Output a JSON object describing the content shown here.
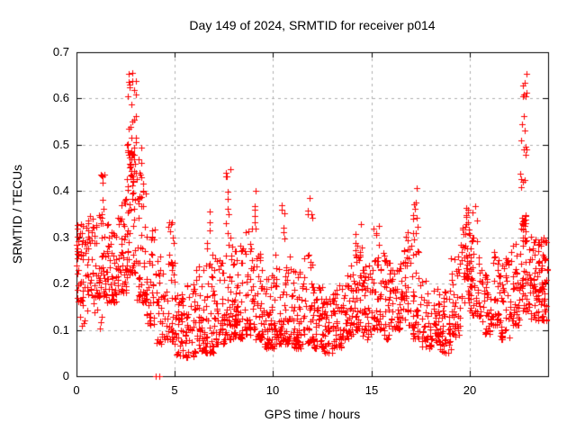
{
  "chart_data": {
    "type": "scatter",
    "title": "Day 149 of 2024, SRMTID for receiver p014",
    "xlabel": "GPS time / hours",
    "ylabel": "SRMTID / TECUs",
    "xlim": [
      0,
      24
    ],
    "ylim": [
      0,
      0.7
    ],
    "xticks": [
      0,
      5,
      10,
      15,
      20
    ],
    "ytick_labels": [
      "0",
      "0.1",
      "0.2",
      "0.3",
      "0.4",
      "0.5",
      "0.6",
      "0.7"
    ],
    "yticks": [
      0,
      0.1,
      0.2,
      0.3,
      0.4,
      0.5,
      0.6,
      0.7
    ],
    "grid": {
      "on": true,
      "color": "#b0b0b0",
      "dash": [
        3,
        4
      ]
    },
    "legend": {
      "visible": false
    },
    "marker": {
      "shape": "plus",
      "color": "#ff0000",
      "size": 7
    },
    "axis_color": "#000000",
    "background": "#ffffff",
    "series_name": "SRMTID",
    "notable_points": {
      "max": {
        "x": 2.8,
        "y": 0.655
      },
      "late_spike": {
        "x": 22.75,
        "y": 0.65
      },
      "zeros": [
        [
          4.03,
          0.0
        ],
        [
          4.2,
          0.0
        ]
      ]
    },
    "density_bins_x0_x1_ylo_yhi_n_shape": [
      [
        0.0,
        0.1,
        0.18,
        0.33,
        10,
        1.0
      ],
      [
        0.05,
        0.55,
        0.15,
        0.34,
        36,
        1.3
      ],
      [
        0.15,
        0.6,
        0.1,
        0.15,
        5,
        1.0
      ],
      [
        0.55,
        1.05,
        0.17,
        0.36,
        42,
        1.5
      ],
      [
        0.85,
        1.35,
        0.1,
        0.16,
        6,
        1.0
      ],
      [
        1.05,
        1.55,
        0.17,
        0.36,
        44,
        1.6
      ],
      [
        1.55,
        2.05,
        0.16,
        0.33,
        44,
        1.5
      ],
      [
        2.05,
        2.55,
        0.18,
        0.4,
        46,
        1.7
      ],
      [
        2.55,
        3.05,
        0.22,
        0.5,
        50,
        1.6
      ],
      [
        3.05,
        3.55,
        0.16,
        0.45,
        44,
        1.8
      ],
      [
        3.55,
        4.05,
        0.11,
        0.32,
        36,
        1.8
      ],
      [
        4.05,
        4.55,
        0.07,
        0.26,
        32,
        1.8
      ],
      [
        4.55,
        5.05,
        0.07,
        0.27,
        34,
        1.9
      ],
      [
        5.05,
        5.55,
        0.045,
        0.18,
        40,
        1.5
      ],
      [
        5.55,
        6.05,
        0.04,
        0.21,
        42,
        1.5
      ],
      [
        6.05,
        6.55,
        0.055,
        0.25,
        44,
        1.8
      ],
      [
        6.55,
        7.05,
        0.05,
        0.27,
        44,
        1.8
      ],
      [
        7.05,
        7.55,
        0.07,
        0.27,
        46,
        1.8
      ],
      [
        7.55,
        8.05,
        0.08,
        0.31,
        46,
        1.8
      ],
      [
        8.05,
        8.55,
        0.08,
        0.29,
        46,
        1.7
      ],
      [
        8.55,
        9.05,
        0.09,
        0.32,
        46,
        1.7
      ],
      [
        9.05,
        9.55,
        0.08,
        0.27,
        44,
        1.7
      ],
      [
        9.55,
        10.05,
        0.06,
        0.23,
        44,
        1.6
      ],
      [
        10.05,
        10.55,
        0.07,
        0.29,
        44,
        1.8
      ],
      [
        10.55,
        11.05,
        0.07,
        0.27,
        42,
        1.8
      ],
      [
        11.05,
        11.55,
        0.06,
        0.23,
        42,
        1.6
      ],
      [
        11.55,
        12.05,
        0.07,
        0.27,
        42,
        1.7
      ],
      [
        12.05,
        12.55,
        0.06,
        0.2,
        42,
        1.4
      ],
      [
        12.55,
        13.05,
        0.05,
        0.18,
        42,
        1.4
      ],
      [
        13.05,
        13.55,
        0.06,
        0.2,
        42,
        1.4
      ],
      [
        13.55,
        14.05,
        0.08,
        0.24,
        42,
        1.5
      ],
      [
        14.05,
        14.55,
        0.1,
        0.3,
        44,
        1.7
      ],
      [
        14.55,
        15.05,
        0.08,
        0.24,
        40,
        1.5
      ],
      [
        15.05,
        15.55,
        0.1,
        0.3,
        40,
        1.6
      ],
      [
        15.55,
        16.05,
        0.08,
        0.27,
        40,
        1.6
      ],
      [
        16.05,
        16.55,
        0.1,
        0.27,
        40,
        1.5
      ],
      [
        16.55,
        17.05,
        0.11,
        0.32,
        40,
        1.6
      ],
      [
        17.05,
        17.55,
        0.08,
        0.32,
        40,
        1.6
      ],
      [
        17.55,
        18.05,
        0.06,
        0.21,
        36,
        1.4
      ],
      [
        18.05,
        18.55,
        0.05,
        0.19,
        36,
        1.3
      ],
      [
        18.55,
        19.05,
        0.05,
        0.19,
        36,
        1.3
      ],
      [
        19.05,
        19.55,
        0.08,
        0.26,
        40,
        1.5
      ],
      [
        19.55,
        20.05,
        0.14,
        0.34,
        46,
        1.3
      ],
      [
        20.05,
        20.55,
        0.13,
        0.32,
        42,
        1.4
      ],
      [
        20.55,
        21.05,
        0.09,
        0.23,
        34,
        1.4
      ],
      [
        21.05,
        21.55,
        0.11,
        0.27,
        38,
        1.4
      ],
      [
        21.55,
        22.05,
        0.08,
        0.27,
        38,
        1.5
      ],
      [
        22.05,
        22.55,
        0.11,
        0.29,
        42,
        1.4
      ],
      [
        22.55,
        23.05,
        0.14,
        0.35,
        48,
        1.3
      ],
      [
        23.05,
        23.55,
        0.12,
        0.31,
        52,
        1.4
      ],
      [
        23.55,
        23.95,
        0.12,
        0.3,
        48,
        1.3
      ]
    ],
    "spike_streaks_x0_x1_ylo_yhi_n": [
      [
        2.6,
        3.05,
        0.44,
        0.66,
        26
      ],
      [
        2.7,
        2.95,
        0.38,
        0.46,
        10
      ],
      [
        3.1,
        3.35,
        0.34,
        0.5,
        8
      ],
      [
        1.2,
        1.45,
        0.36,
        0.44,
        7
      ],
      [
        4.6,
        5.0,
        0.22,
        0.34,
        12
      ],
      [
        6.55,
        6.8,
        0.27,
        0.38,
        7
      ],
      [
        7.55,
        7.85,
        0.33,
        0.46,
        9
      ],
      [
        9.0,
        9.2,
        0.31,
        0.41,
        6
      ],
      [
        10.4,
        10.65,
        0.29,
        0.37,
        6
      ],
      [
        11.75,
        12.0,
        0.32,
        0.41,
        5
      ],
      [
        14.1,
        14.5,
        0.24,
        0.33,
        8
      ],
      [
        15.1,
        15.4,
        0.24,
        0.33,
        6
      ],
      [
        17.1,
        17.4,
        0.3,
        0.42,
        10
      ],
      [
        19.6,
        20.0,
        0.3,
        0.37,
        8
      ],
      [
        20.05,
        20.4,
        0.29,
        0.37,
        7
      ],
      [
        22.6,
        22.9,
        0.37,
        0.655,
        20
      ],
      [
        22.65,
        22.85,
        0.3,
        0.37,
        6
      ]
    ],
    "explicit_points": [
      [
        4.03,
        0.0
      ],
      [
        4.2,
        0.0
      ]
    ]
  }
}
